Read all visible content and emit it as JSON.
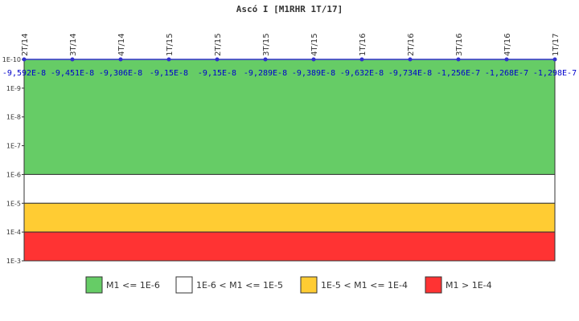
{
  "chart_data": {
    "type": "line",
    "title": "Ascó I [M1RHR 1T/17]",
    "y_scale": "log",
    "y_inverted": true,
    "ylim": [
      1e-10,
      0.001
    ],
    "y_ticks": [
      "1E-10",
      "1E-9",
      "1E-8",
      "1E-7",
      "1E-6",
      "1E-5",
      "1E-4",
      "1E-3"
    ],
    "categories": [
      "2T/14",
      "3T/14",
      "4T/14",
      "1T/15",
      "2T/15",
      "3T/15",
      "4T/15",
      "1T/16",
      "2T/16",
      "3T/16",
      "4T/16",
      "1T/17"
    ],
    "data_labels": [
      "-9,592E-8",
      "-9,451E-8",
      "-9,306E-8",
      "-9,15E-8",
      "-9,15E-8",
      "-9,289E-8",
      "-9,389E-8",
      "-9,632E-8",
      "-9,734E-8",
      "-1,256E-7",
      "-1,268E-7",
      "-1,298E-7"
    ],
    "series": [
      {
        "values": [
          -9.592e-08,
          -9.451e-08,
          -9.306e-08,
          -9.15e-08,
          -9.15e-08,
          -9.289e-08,
          -9.389e-08,
          -9.632e-08,
          -9.734e-08,
          -1.256e-07,
          -1.268e-07,
          -1.298e-07
        ],
        "color": "#3333cc"
      }
    ],
    "bands": [
      {
        "label": "M1 <= 1E-6",
        "from": 1e-10,
        "to": 1e-06,
        "color": "#66cc66"
      },
      {
        "label": "1E-6 < M1 <= 1E-5",
        "from": 1e-06,
        "to": 1e-05,
        "color": "#ffffff"
      },
      {
        "label": "1E-5 < M1 <= 1E-4",
        "from": 1e-05,
        "to": 0.0001,
        "color": "#ffcc33"
      },
      {
        "label": "M1 > 1E-4",
        "from": 0.0001,
        "to": 0.001,
        "color": "#ff3333"
      }
    ],
    "legend_position": "bottom",
    "grid": false
  }
}
